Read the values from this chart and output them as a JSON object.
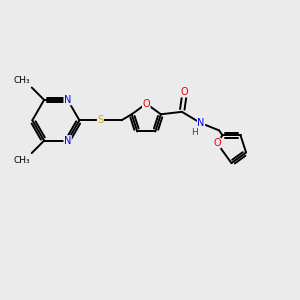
{
  "bg_color": "#ebebeb",
  "atom_colors": {
    "C": "#000000",
    "N": "#0000ee",
    "O": "#ee0000",
    "S": "#ccaa00",
    "H": "#444444"
  },
  "lw": 1.4,
  "fs": 7.0,
  "xlim": [
    0,
    12
  ],
  "ylim": [
    0,
    10
  ]
}
